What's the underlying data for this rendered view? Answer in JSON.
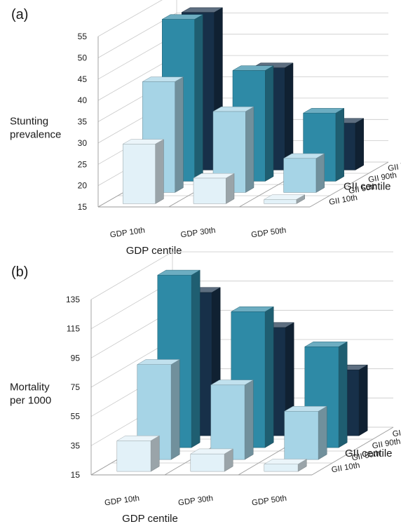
{
  "chart_data": [
    {
      "panel_label": "(a)",
      "type": "bar",
      "subtype": "3d-column",
      "x_categories": [
        "GDP 10th",
        "GDP 30th",
        "GDP 50th"
      ],
      "depth_categories": [
        "GII 10th",
        "GII 50th",
        "GII 90th",
        "GII ignored"
      ],
      "ylabel": "Stunting prevalence",
      "xlabel": "GDP centile",
      "depth_label": "GII centile",
      "ylim": [
        15,
        55
      ],
      "yticks": [
        15,
        20,
        25,
        30,
        35,
        40,
        45,
        50,
        55
      ],
      "grid": true,
      "series": [
        {
          "name": "GII 10th",
          "values": [
            29,
            21,
            16
          ]
        },
        {
          "name": "GII 50th",
          "values": [
            41,
            34,
            23
          ]
        },
        {
          "name": "GII 90th",
          "values": [
            53,
            41,
            31
          ]
        },
        {
          "name": "GII ignored",
          "values": [
            52,
            39,
            26
          ]
        }
      ]
    },
    {
      "panel_label": "(b)",
      "type": "bar",
      "subtype": "3d-column",
      "x_categories": [
        "GDP 10th",
        "GDP 30th",
        "GDP 50th"
      ],
      "depth_categories": [
        "GII 10th",
        "GII 50th",
        "GII 90th",
        "GII ignored"
      ],
      "ylabel": "Mortality per 1000",
      "xlabel": "GDP centile",
      "depth_label": "GII centile",
      "ylim": [
        15,
        135
      ],
      "yticks": [
        15,
        35,
        55,
        75,
        95,
        115,
        135
      ],
      "grid": true,
      "series": [
        {
          "name": "GII 10th",
          "values": [
            36,
            27,
            20
          ]
        },
        {
          "name": "GII 50th",
          "values": [
            80,
            66,
            48
          ]
        },
        {
          "name": "GII 90th",
          "values": [
            133,
            108,
            84
          ]
        },
        {
          "name": "GII ignored",
          "values": [
            113,
            89,
            60
          ]
        }
      ]
    }
  ],
  "colors": {
    "GII 10th": "#e2f1f8",
    "GII 50th": "#a6d4e6",
    "GII 90th": "#2e8aa6",
    "GII ignored": "#173049"
  }
}
